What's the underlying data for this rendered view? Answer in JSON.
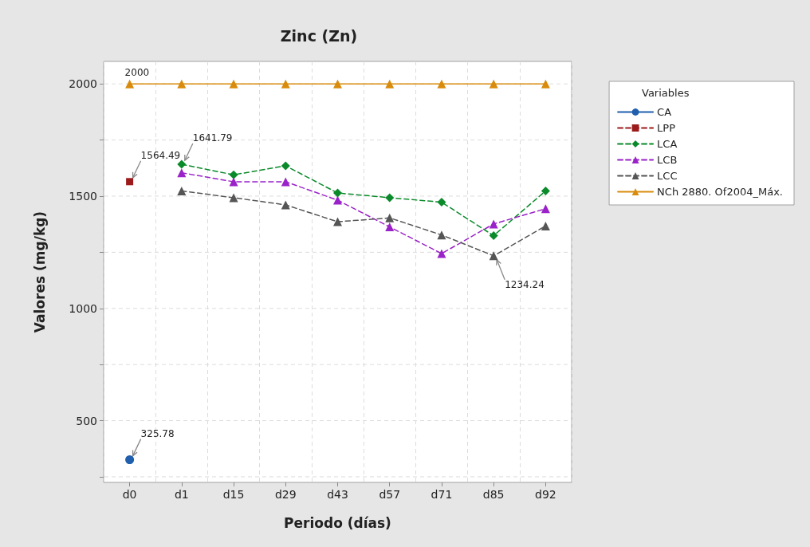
{
  "chart_data": {
    "type": "line",
    "title": "Zinc (Zn)",
    "xlabel": "Periodo (días)",
    "ylabel": "Valores (mg/kg)",
    "legend_title": "Variables",
    "legend": "right",
    "grid": true,
    "categories": [
      "d0",
      "d1",
      "d15",
      "d29",
      "d43",
      "d57",
      "d71",
      "d85",
      "d92"
    ],
    "ylim": [
      225,
      2100
    ],
    "yticks": [
      {
        "value": 250,
        "label": null
      },
      500,
      {
        "value": 750,
        "label": null
      },
      1000,
      {
        "value": 1250,
        "label": null
      },
      1500,
      {
        "value": 1750,
        "label": null
      },
      2000
    ],
    "series": [
      {
        "name": "CA",
        "color": "#1f5fad",
        "marker": "circle",
        "line_style": "solid",
        "values": [
          325.78,
          null,
          null,
          null,
          null,
          null,
          null,
          null,
          null
        ]
      },
      {
        "name": "LPP",
        "color": "#9b1b1b",
        "marker": "square",
        "line_style": "dashed",
        "values": [
          1564.49,
          null,
          null,
          null,
          null,
          null,
          null,
          null,
          null
        ]
      },
      {
        "name": "LCA",
        "color": "#0a8a2a",
        "marker": "diamond",
        "line_style": "dashed",
        "values": [
          null,
          1641.79,
          1595,
          1635,
          1514,
          1493,
          1473,
          1324,
          1523
        ]
      },
      {
        "name": "LCB",
        "color": "#9a22c8",
        "marker": "triangle",
        "line_style": "dashed",
        "values": [
          null,
          1604,
          1564,
          1564,
          1482,
          1363,
          1244,
          1376,
          1444
        ]
      },
      {
        "name": "LCC",
        "color": "#555555",
        "marker": "triangle",
        "line_style": "dashed",
        "values": [
          null,
          1523,
          1493,
          1461,
          1386,
          1403,
          1327,
          1234.24,
          1367
        ]
      },
      {
        "name": "NCh 2880. Of2004_Máx.",
        "color": "#d98b0c",
        "marker": "triangle",
        "line_style": "solid",
        "values": [
          2000,
          2000,
          2000,
          2000,
          2000,
          2000,
          2000,
          2000,
          2000
        ]
      }
    ],
    "annotations": [
      {
        "text": "2000",
        "x": "d0",
        "y": 2000
      },
      {
        "text": "1564.49",
        "x": "d0",
        "y": 1564.49
      },
      {
        "text": "1641.79",
        "x": "d1",
        "y": 1641.79
      },
      {
        "text": "1234.24",
        "x": "d85",
        "y": 1234.24
      },
      {
        "text": "325.78",
        "x": "d0",
        "y": 325.78
      }
    ]
  }
}
